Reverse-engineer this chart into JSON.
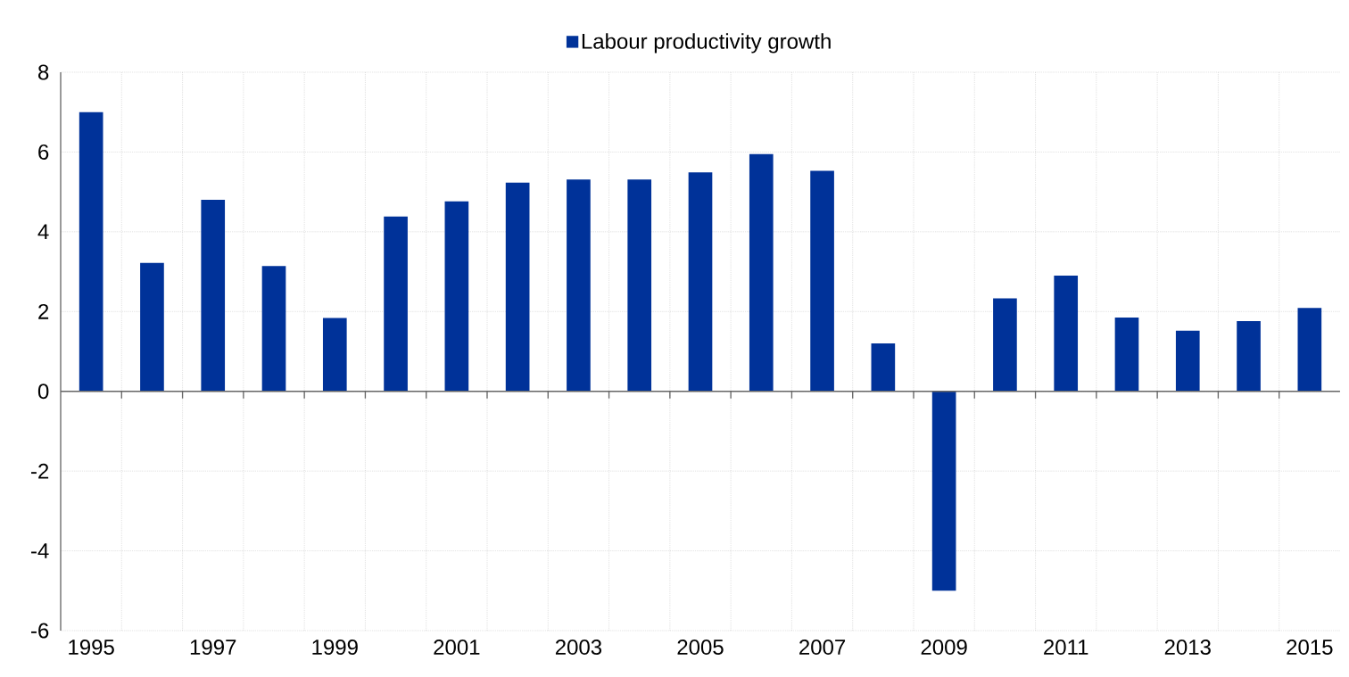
{
  "chart_data": {
    "type": "bar",
    "categories": [
      "1995",
      null,
      "1997",
      null,
      "1999",
      null,
      "2001",
      null,
      "2003",
      null,
      "2005",
      null,
      "2007",
      null,
      "2009",
      null,
      "2011",
      null,
      "2013",
      null,
      "2015"
    ],
    "series": [
      {
        "name": "Labour productivity growth",
        "color": "#003299",
        "values": [
          7.0,
          3.22,
          4.8,
          3.14,
          1.84,
          4.38,
          4.76,
          5.23,
          5.31,
          5.31,
          5.49,
          5.95,
          5.53,
          1.2,
          -5.0,
          2.33,
          2.9,
          1.85,
          1.52,
          1.76,
          2.09
        ]
      }
    ],
    "ylim": [
      -6,
      8
    ],
    "yticks": [
      -6,
      -4,
      -2,
      0,
      2,
      4,
      6,
      8
    ],
    "grid": true,
    "legend": "top"
  }
}
